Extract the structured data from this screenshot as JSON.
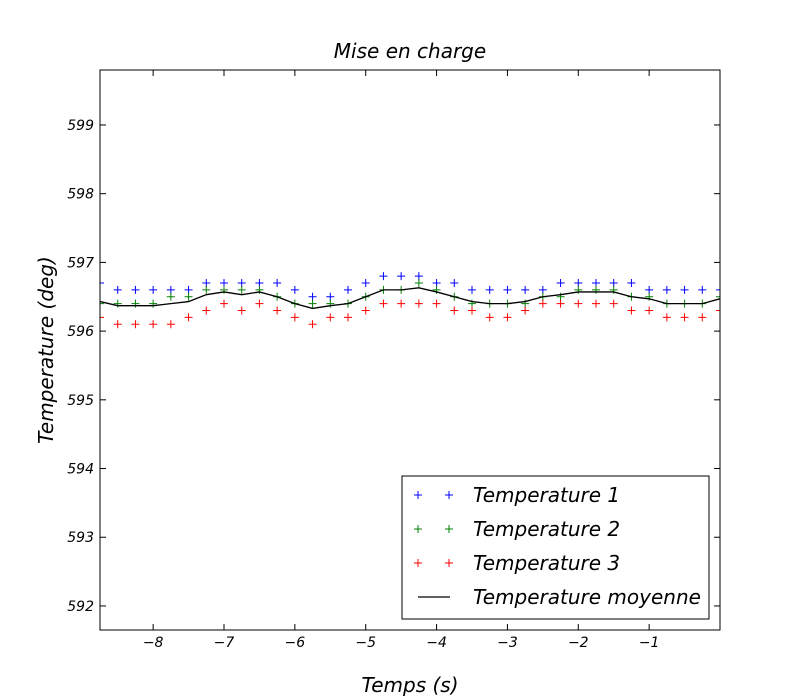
{
  "chart_data": {
    "type": "scatter",
    "title": "Mise en charge",
    "xlabel": "Temps (s)",
    "ylabel": "Temperature (deg)",
    "xlim": [
      -8.75,
      -0.0
    ],
    "ylim": [
      591.65,
      599.8
    ],
    "xticks": [
      -8,
      -7,
      -6,
      -5,
      -4,
      -3,
      -2,
      -1
    ],
    "xtick_labels": [
      "−8",
      "−7",
      "−6",
      "−5",
      "−4",
      "−3",
      "−2",
      "−1"
    ],
    "yticks": [
      592,
      593,
      594,
      595,
      596,
      597,
      598,
      599
    ],
    "ytick_labels": [
      "592",
      "593",
      "594",
      "595",
      "596",
      "597",
      "598",
      "599"
    ],
    "grid": false,
    "legend_position": "lower-right",
    "x": [
      -8.75,
      -8.5,
      -8.25,
      -8.0,
      -7.75,
      -7.5,
      -7.25,
      -7.0,
      -6.75,
      -6.5,
      -6.25,
      -6.0,
      -5.75,
      -5.5,
      -5.25,
      -5.0,
      -4.75,
      -4.5,
      -4.25,
      -4.0,
      -3.75,
      -3.5,
      -3.25,
      -3.0,
      -2.75,
      -2.5,
      -2.25,
      -2.0,
      -1.75,
      -1.5,
      -1.25,
      -1.0,
      -0.75,
      -0.5,
      -0.25,
      0.0
    ],
    "series": [
      {
        "name": "Temperature 1",
        "style": "marker",
        "color": "#0000ff",
        "values": [
          596.7,
          596.6,
          596.6,
          596.6,
          596.6,
          596.6,
          596.7,
          596.7,
          596.7,
          596.7,
          596.7,
          596.6,
          596.5,
          596.5,
          596.6,
          596.7,
          596.8,
          596.8,
          596.8,
          596.7,
          596.7,
          596.6,
          596.6,
          596.6,
          596.6,
          596.6,
          596.7,
          596.7,
          596.7,
          596.7,
          596.7,
          596.6,
          596.6,
          596.6,
          596.6,
          596.6
        ]
      },
      {
        "name": "Temperature 2",
        "style": "marker",
        "color": "#008000",
        "values": [
          596.4,
          596.4,
          596.4,
          596.4,
          596.5,
          596.5,
          596.6,
          596.6,
          596.6,
          596.6,
          596.5,
          596.4,
          596.4,
          596.4,
          596.4,
          596.5,
          596.6,
          596.6,
          596.7,
          596.6,
          596.5,
          596.4,
          596.4,
          596.4,
          596.4,
          596.5,
          596.5,
          596.6,
          596.6,
          596.6,
          596.5,
          596.5,
          596.4,
          596.4,
          596.4,
          596.5
        ]
      },
      {
        "name": "Temperature 3",
        "style": "marker",
        "color": "#ff0000",
        "values": [
          596.2,
          596.1,
          596.1,
          596.1,
          596.1,
          596.2,
          596.3,
          596.4,
          596.3,
          596.4,
          596.3,
          596.2,
          596.1,
          596.2,
          596.2,
          596.3,
          596.4,
          596.4,
          596.4,
          596.4,
          596.3,
          596.3,
          596.2,
          596.2,
          596.3,
          596.4,
          596.4,
          596.4,
          596.4,
          596.4,
          596.3,
          596.3,
          596.2,
          596.2,
          596.2,
          596.3
        ]
      },
      {
        "name": "Temperature moyenne",
        "style": "line",
        "color": "#000000",
        "values": [
          596.43,
          596.37,
          596.37,
          596.37,
          596.4,
          596.43,
          596.53,
          596.57,
          596.53,
          596.57,
          596.5,
          596.4,
          596.33,
          596.37,
          596.4,
          596.5,
          596.6,
          596.6,
          596.63,
          596.57,
          596.5,
          596.43,
          596.4,
          596.4,
          596.43,
          596.5,
          596.53,
          596.57,
          596.57,
          596.57,
          596.5,
          596.47,
          596.4,
          596.4,
          596.4,
          596.47
        ]
      }
    ]
  }
}
